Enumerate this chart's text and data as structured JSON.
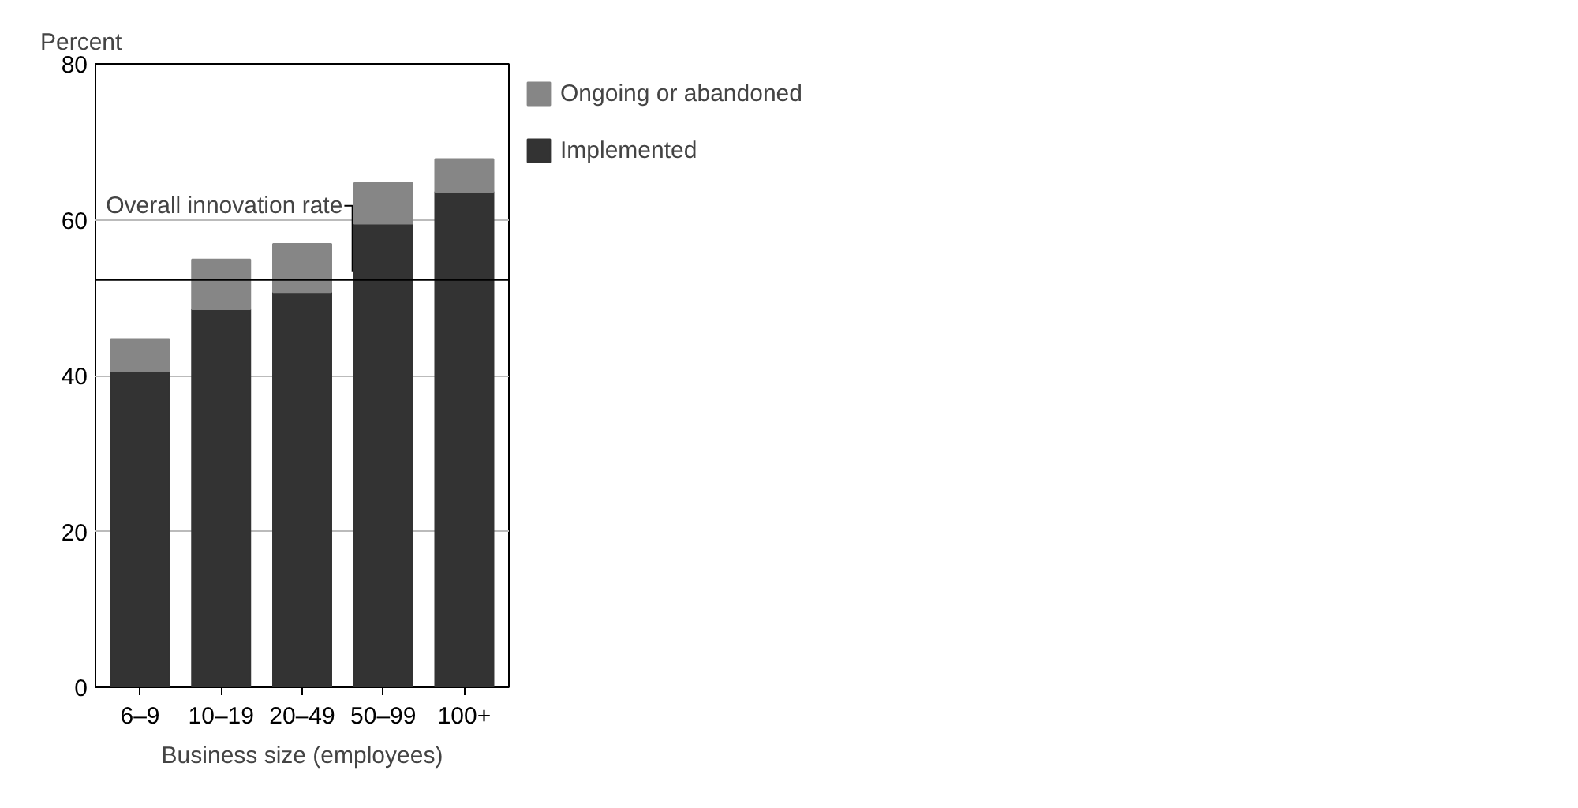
{
  "chart_data": {
    "type": "bar",
    "stacked": true,
    "ylabel": "Percent",
    "xlabel": "Business size (employees)",
    "categories": [
      "6–9",
      "10–19",
      "20–49",
      "50–99",
      "100+"
    ],
    "series": [
      {
        "name": "Implemented",
        "color": "#333333",
        "values": [
          40.5,
          48.5,
          50.7,
          59.5,
          63.6
        ]
      },
      {
        "name": "Ongoing or abandoned",
        "color": "#868686",
        "values": [
          4.2,
          6.4,
          6.2,
          5.2,
          4.2
        ]
      }
    ],
    "ylim": [
      0,
      80
    ],
    "yticks": [
      0,
      20,
      40,
      60,
      80
    ],
    "grid": "y",
    "legend": "top right",
    "ref_lines": [
      {
        "axis": "y",
        "value": 52.3,
        "label": "Overall innovation rate",
        "color": "#000000"
      }
    ]
  }
}
